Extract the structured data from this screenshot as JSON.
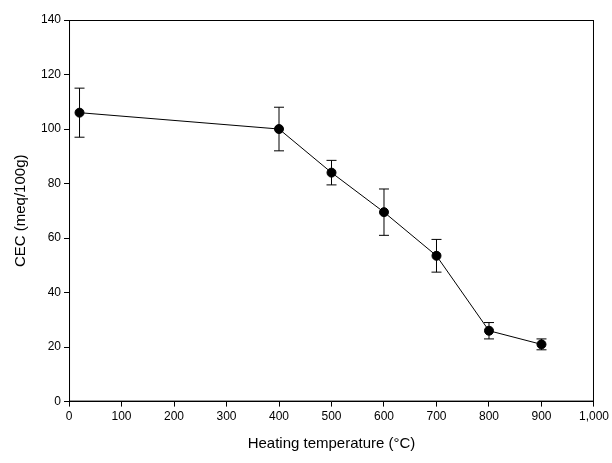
{
  "chart_data": {
    "type": "line",
    "x_label": "Heating temperature (°C)",
    "y_label": "CEC (meq/100g)",
    "x": [
      20,
      400,
      500,
      600,
      700,
      800,
      900
    ],
    "values": [
      106,
      100,
      84,
      69.5,
      53.5,
      26,
      21
    ],
    "errors": [
      9,
      8,
      4.5,
      8.5,
      6,
      3,
      2
    ],
    "color": "#000000",
    "marker": "circle",
    "line_style": "solid",
    "xlim": [
      0,
      1000
    ],
    "xticks": [
      0,
      100,
      200,
      300,
      400,
      500,
      600,
      700,
      800,
      900,
      1000
    ],
    "ylim": [
      0,
      140
    ],
    "yticks": [
      0,
      20,
      40,
      60,
      80,
      100,
      120,
      140
    ],
    "grid": false
  }
}
